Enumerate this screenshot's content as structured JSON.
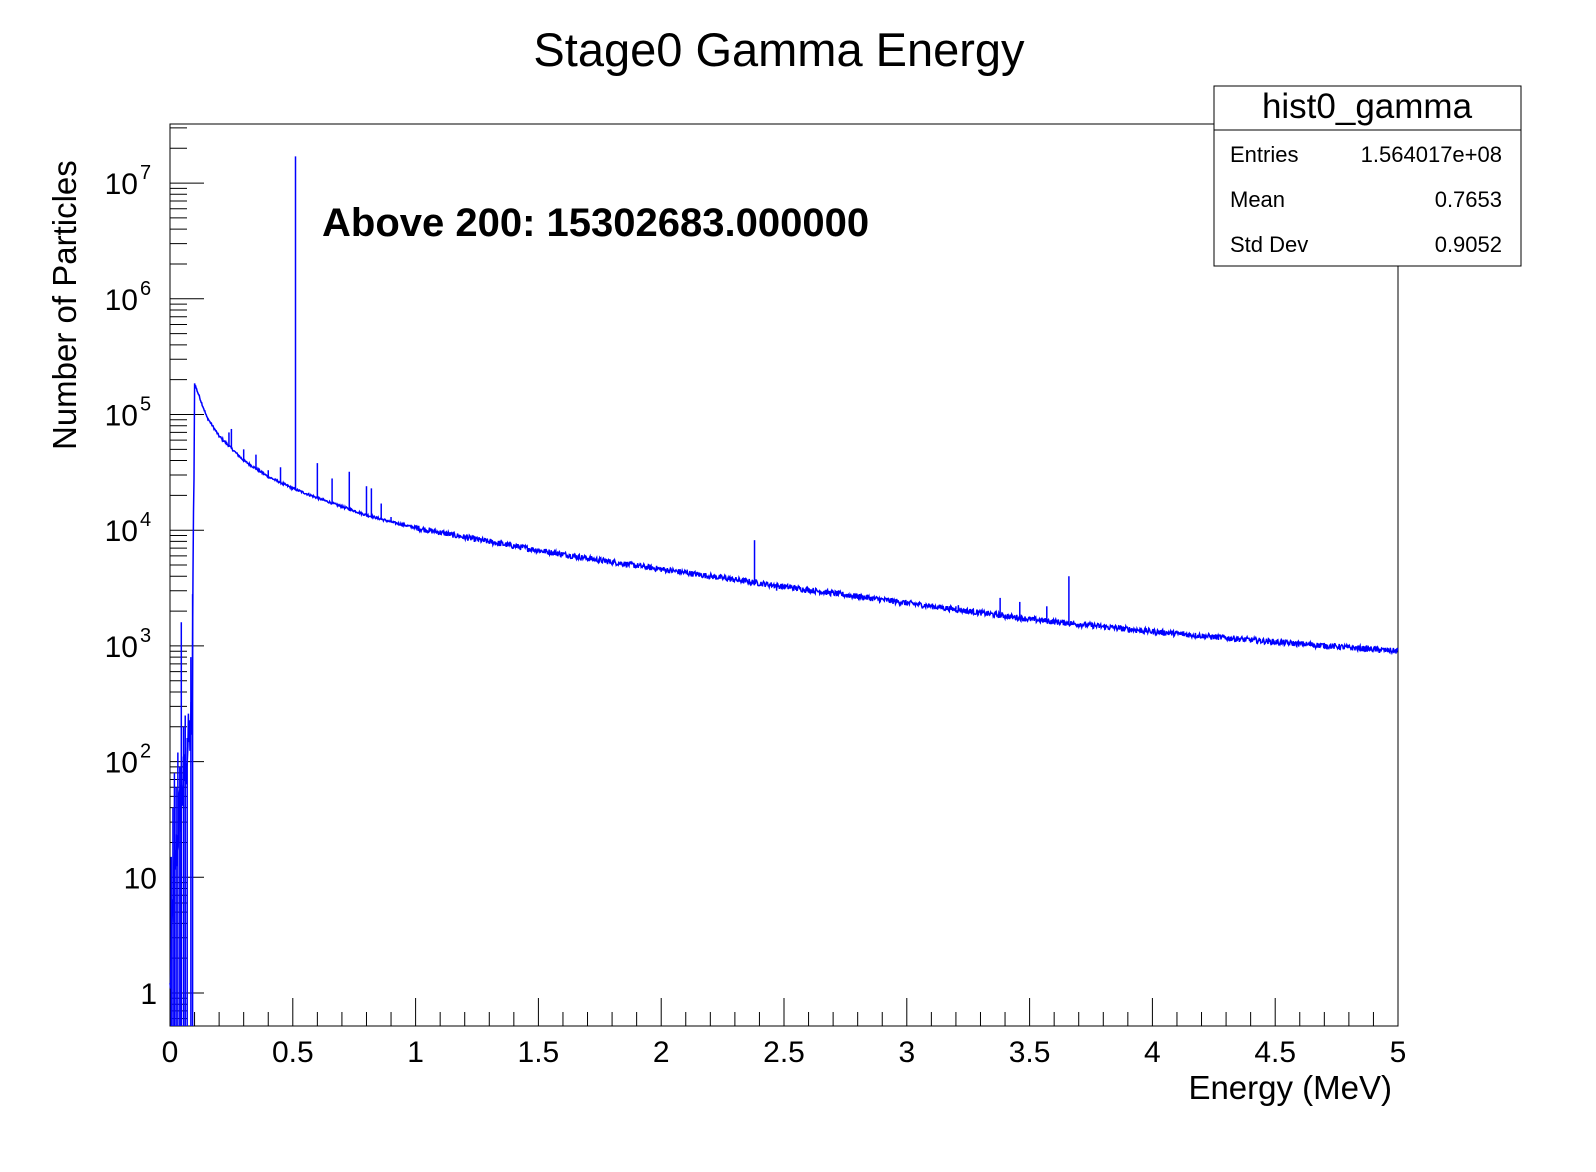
{
  "chart_data": {
    "type": "histogram",
    "title": "Stage0 Gamma Energy",
    "xlabel": "Energy (MeV)",
    "ylabel": "Number of Particles",
    "xlim": [
      0,
      5
    ],
    "ylim": [
      0.5,
      30000000
    ],
    "yscale": "log",
    "line_color": "#0000ff",
    "x_ticks": [
      "0",
      "0.5",
      "1",
      "1.5",
      "2",
      "2.5",
      "3",
      "3.5",
      "4",
      "4.5",
      "5"
    ],
    "y_ticks": [
      {
        "label": "1",
        "exp": ""
      },
      {
        "label": "10",
        "exp": ""
      },
      {
        "label": "10",
        "exp": "2"
      },
      {
        "label": "10",
        "exp": "3"
      },
      {
        "label": "10",
        "exp": "4"
      },
      {
        "label": "10",
        "exp": "5"
      },
      {
        "label": "10",
        "exp": "6"
      },
      {
        "label": "10",
        "exp": "7"
      }
    ],
    "annotation": "Above 200: 15302683.000000",
    "stats": {
      "name": "hist0_gamma",
      "rows": [
        {
          "label": "Entries",
          "value": "1.564017e+08"
        },
        {
          "label": "Mean",
          "value": "0.7653"
        },
        {
          "label": "Std Dev",
          "value": "0.9052"
        }
      ]
    },
    "continuum": [
      [
        0.0,
        1
      ],
      [
        0.01,
        5
      ],
      [
        0.02,
        12
      ],
      [
        0.03,
        22
      ],
      [
        0.04,
        38
      ],
      [
        0.05,
        55
      ],
      [
        0.06,
        80
      ],
      [
        0.07,
        120
      ],
      [
        0.08,
        170
      ],
      [
        0.09,
        220
      ],
      [
        0.1,
        185000
      ],
      [
        0.15,
        95000
      ],
      [
        0.2,
        65000
      ],
      [
        0.3,
        40000
      ],
      [
        0.4,
        29000
      ],
      [
        0.5,
        23000
      ],
      [
        0.6,
        19000
      ],
      [
        0.7,
        16000
      ],
      [
        0.8,
        13500
      ],
      [
        0.9,
        11800
      ],
      [
        1.0,
        10500
      ],
      [
        1.25,
        8300
      ],
      [
        1.5,
        6700
      ],
      [
        1.75,
        5500
      ],
      [
        2.0,
        4600
      ],
      [
        2.5,
        3250
      ],
      [
        3.0,
        2350
      ],
      [
        3.5,
        1700
      ],
      [
        4.0,
        1330
      ],
      [
        4.5,
        1080
      ],
      [
        5.0,
        900
      ]
    ],
    "low_energy_spikes": [
      [
        0.005,
        15
      ],
      [
        0.012,
        40
      ],
      [
        0.018,
        80
      ],
      [
        0.025,
        60
      ],
      [
        0.032,
        120
      ],
      [
        0.04,
        90
      ],
      [
        0.046,
        1600
      ],
      [
        0.055,
        200
      ],
      [
        0.062,
        250
      ],
      [
        0.07,
        160
      ],
      [
        0.085,
        800
      ],
      [
        0.092,
        2800
      ]
    ],
    "peaks": [
      [
        0.511,
        17000000
      ],
      [
        0.24,
        70000
      ],
      [
        0.25,
        75000
      ],
      [
        0.3,
        50000
      ],
      [
        0.35,
        45000
      ],
      [
        0.4,
        33000
      ],
      [
        0.45,
        35000
      ],
      [
        0.6,
        38000
      ],
      [
        0.66,
        28000
      ],
      [
        0.73,
        32000
      ],
      [
        0.8,
        24000
      ],
      [
        0.82,
        23000
      ],
      [
        0.86,
        17000
      ],
      [
        0.9,
        13000
      ],
      [
        2.38,
        8200
      ],
      [
        2.47,
        3000
      ],
      [
        2.86,
        2600
      ],
      [
        3.2,
        2200
      ],
      [
        3.21,
        2250
      ],
      [
        3.38,
        2600
      ],
      [
        3.46,
        2400
      ],
      [
        3.57,
        2200
      ],
      [
        3.66,
        4000
      ]
    ]
  }
}
